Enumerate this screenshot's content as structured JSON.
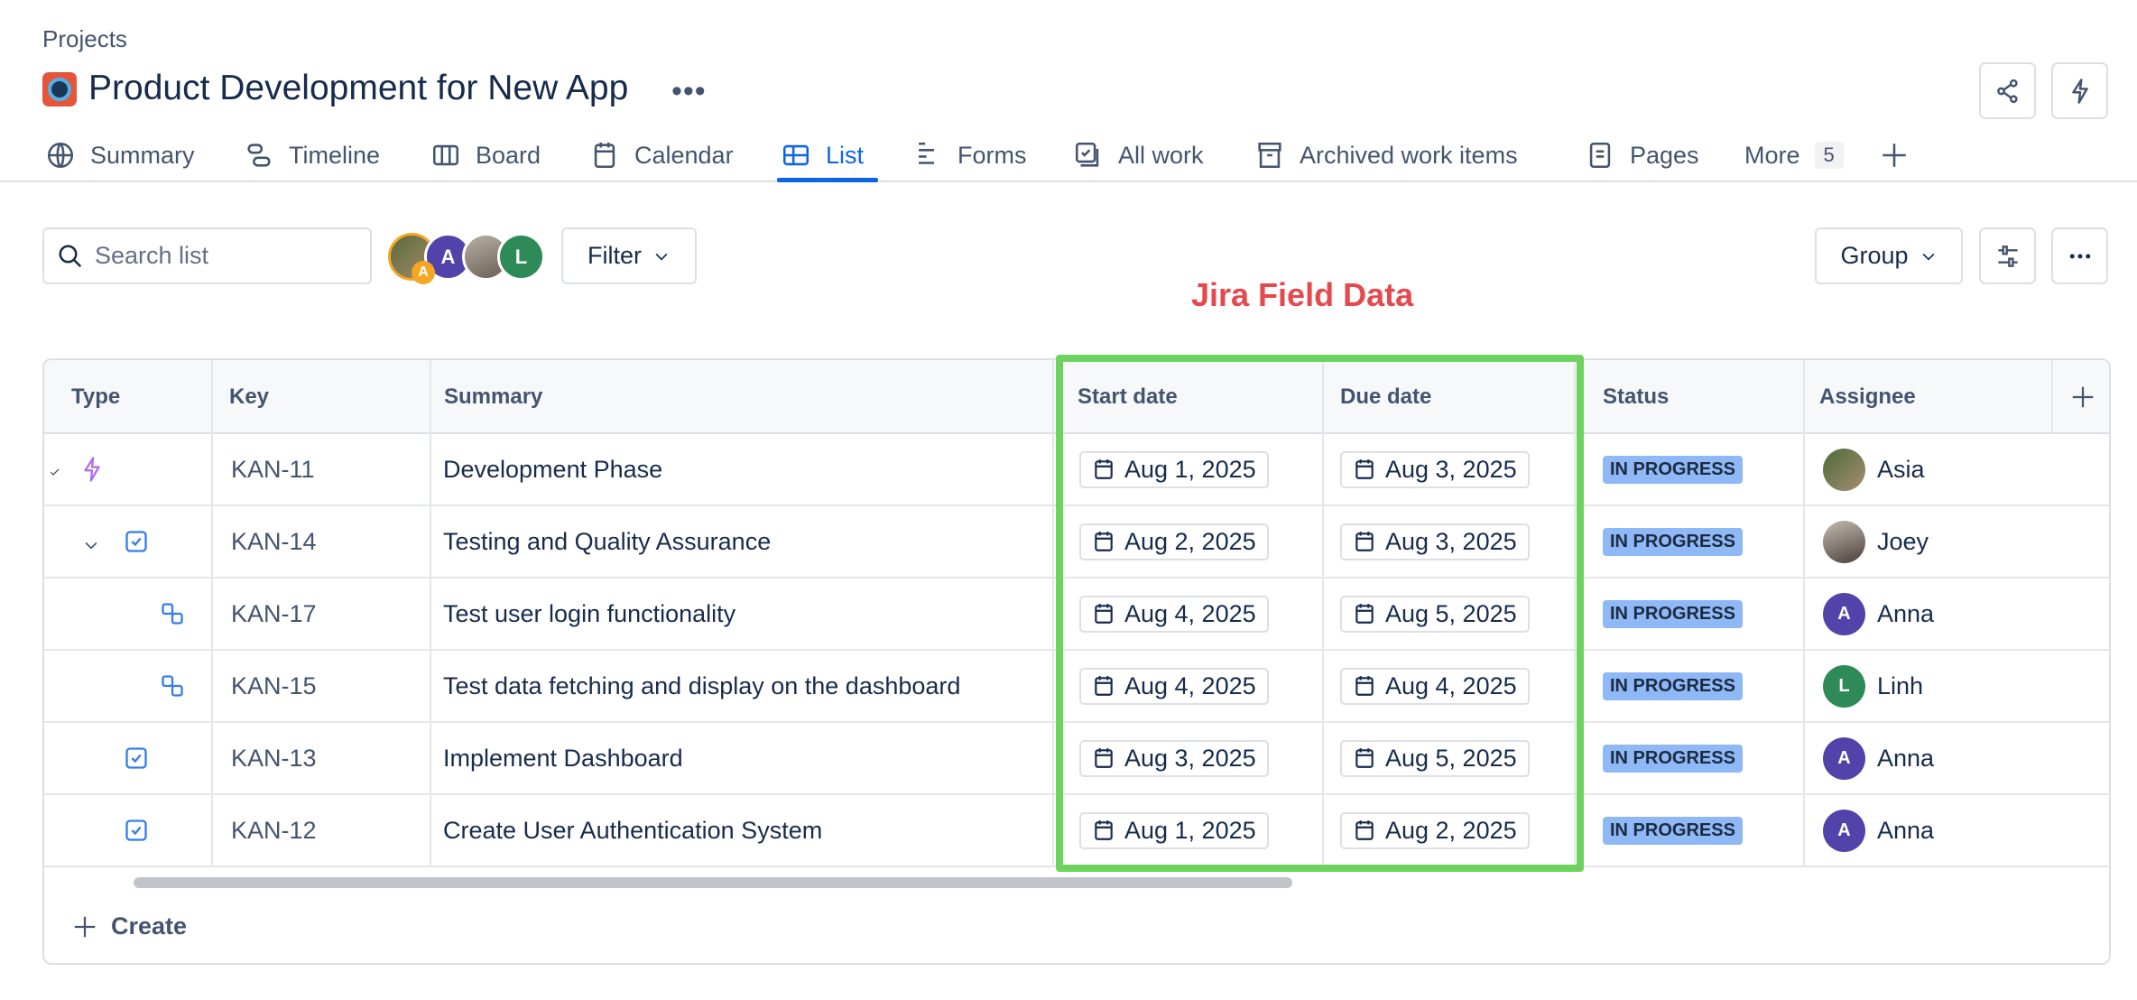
{
  "breadcrumb": "Projects",
  "project": {
    "title": "Product Development for New App",
    "more": "•••"
  },
  "header_actions": [
    {
      "icon": "share-icon"
    },
    {
      "icon": "lightning-icon"
    }
  ],
  "tabs": [
    {
      "label": "Summary",
      "icon": "globe-icon"
    },
    {
      "label": "Timeline",
      "icon": "timeline-icon"
    },
    {
      "label": "Board",
      "icon": "board-icon"
    },
    {
      "label": "Calendar",
      "icon": "calendar-icon"
    },
    {
      "label": "List",
      "icon": "list-icon",
      "active": true
    },
    {
      "label": "Forms",
      "icon": "forms-icon"
    },
    {
      "label": "All work",
      "icon": "all-work-icon"
    },
    {
      "label": "Archived work items",
      "icon": "archive-icon"
    },
    {
      "label": "Pages",
      "icon": "pages-icon"
    },
    {
      "label": "More",
      "badge": "5"
    }
  ],
  "toolbar": {
    "search_placeholder": "Search list",
    "avatars": [
      {
        "type": "photo",
        "badge": "A",
        "color": "#f5a623"
      },
      {
        "initial": "A",
        "color": "#5243aa"
      },
      {
        "type": "photo"
      },
      {
        "initial": "L",
        "color": "#2e8b57"
      }
    ],
    "filter_label": "Filter",
    "group_label": "Group"
  },
  "annotation": {
    "label": "Jira Field Data",
    "color": "#e5484d",
    "box_color": "#6dd35f"
  },
  "table": {
    "columns": [
      "Type",
      "Key",
      "Summary",
      "Start date",
      "Due date",
      "Status",
      "Assignee"
    ],
    "rows": [
      {
        "type": "epic",
        "key": "KAN-11",
        "summary": "Development Phase",
        "start": "Aug 1, 2025",
        "due": "Aug 3, 2025",
        "status": "IN PROGRESS",
        "assignee": "Asia",
        "avatar": "photo"
      },
      {
        "type": "task",
        "key": "KAN-14",
        "summary": "Testing and Quality Assurance",
        "start": "Aug 2, 2025",
        "due": "Aug 3, 2025",
        "status": "IN PROGRESS",
        "assignee": "Joey",
        "avatar": "photo"
      },
      {
        "type": "subtask",
        "key": "KAN-17",
        "summary": "Test user login functionality",
        "start": "Aug 4, 2025",
        "due": "Aug 5, 2025",
        "status": "IN PROGRESS",
        "assignee": "Anna",
        "avatar": "A",
        "avatar_color": "#5243aa"
      },
      {
        "type": "subtask",
        "key": "KAN-15",
        "summary": "Test data fetching and display on the dashboard",
        "start": "Aug 4, 2025",
        "due": "Aug 4, 2025",
        "status": "IN PROGRESS",
        "assignee": "Linh",
        "avatar": "L",
        "avatar_color": "#2e8b57"
      },
      {
        "type": "task",
        "key": "KAN-13",
        "summary": "Implement Dashboard",
        "start": "Aug 3, 2025",
        "due": "Aug 5, 2025",
        "status": "IN PROGRESS",
        "assignee": "Anna",
        "avatar": "A",
        "avatar_color": "#5243aa"
      },
      {
        "type": "task",
        "key": "KAN-12",
        "summary": "Create User Authentication System",
        "start": "Aug 1, 2025",
        "due": "Aug 2, 2025",
        "status": "IN PROGRESS",
        "assignee": "Anna",
        "avatar": "A",
        "avatar_color": "#5243aa"
      }
    ],
    "create_label": "Create",
    "status_color": "#8fb8f6"
  }
}
